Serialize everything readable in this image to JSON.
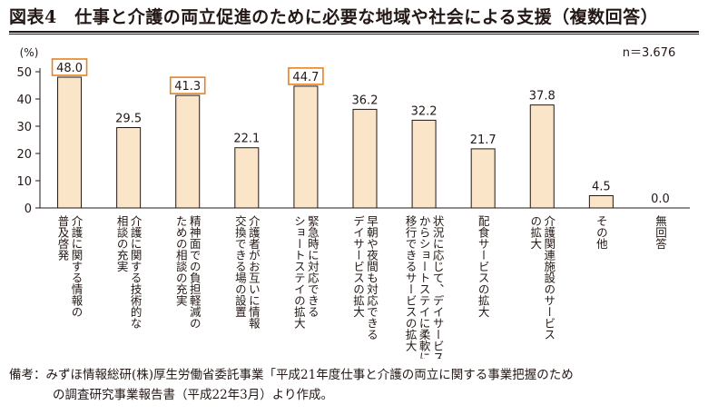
{
  "title": "図表4　仕事と介護の両立促進のために必要な地域や社会による支援（複数回答）",
  "note": {
    "line1": "備考：みずほ情報総研(株)厚生労働省委託事業「平成21年度仕事と介護の両立に関する事業把握のため",
    "line2": "の調査研究事業報告書（平成22年3月）より作成。"
  },
  "chart_data": {
    "type": "bar",
    "unit_label": "(%)",
    "sample_label": "n＝3.676",
    "ylim": [
      0,
      50
    ],
    "yticks": [
      0,
      10,
      20,
      30,
      40,
      50
    ],
    "grid": false,
    "bar_color": "#fbe5c8",
    "bar_edge_color": "#231815",
    "highlight_color": "#e8821e",
    "categories": [
      [
        "介護に関する情報の",
        "普及啓発"
      ],
      [
        "介護に関する技術的な",
        "相談の充実"
      ],
      [
        "精神面での負担軽減の",
        "ための相談の充実"
      ],
      [
        "介護者がお互いに情報",
        "交換できる場の設置"
      ],
      [
        "緊急時に対応できる",
        "ショートステイの拡大"
      ],
      [
        "早朝や夜間も対応できる",
        "デイサービスの拡大"
      ],
      [
        "状況に応じて、デイサービス",
        "からショートステイに柔軟に",
        "移行できるサービスの拡大"
      ],
      [
        "配食サービスの拡大"
      ],
      [
        "介護関連施設のサービス",
        "の拡大"
      ],
      [
        "その他"
      ],
      [
        "無回答"
      ]
    ],
    "values": [
      48.0,
      29.5,
      41.3,
      22.1,
      44.7,
      36.2,
      32.2,
      21.7,
      37.8,
      4.5,
      0.0
    ],
    "value_labels": [
      "48.0",
      "29.5",
      "41.3",
      "22.1",
      "44.7",
      "36.2",
      "32.2",
      "21.7",
      "37.8",
      "4.5",
      "0.0"
    ],
    "highlighted": [
      0,
      2,
      4
    ]
  }
}
